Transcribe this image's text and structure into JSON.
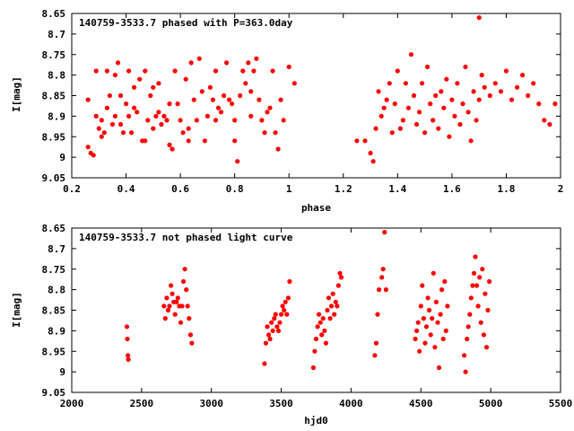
{
  "chart_data": [
    {
      "type": "scatter",
      "title": "140759-3533.7 phased with P=363.0day",
      "xlabel": "phase",
      "ylabel": "I[mag]",
      "xlim": [
        0.2,
        2.0
      ],
      "ylim": [
        9.05,
        8.65
      ],
      "y_inverted": true,
      "grid": false,
      "marker_color": "#ff0000",
      "xticks": [
        0.2,
        0.4,
        0.6,
        0.8,
        1.0,
        1.2,
        1.4,
        1.6,
        1.8,
        2.0
      ],
      "xtick_labels": [
        "0.2",
        "0.4",
        "0.6",
        "0.8",
        "1",
        "1.2",
        "1.4",
        "1.6",
        "1.8",
        "2"
      ],
      "yticks": [
        8.65,
        8.7,
        8.75,
        8.8,
        8.85,
        8.9,
        8.95,
        9.0,
        9.05
      ],
      "ytick_labels": [
        "8.65",
        "8.7",
        "8.75",
        "8.8",
        "8.85",
        "8.9",
        "8.95",
        "9",
        "9.05"
      ],
      "points": [
        [
          0.26,
          8.975
        ],
        [
          0.26,
          8.86
        ],
        [
          0.27,
          8.99
        ],
        [
          0.28,
          8.995
        ],
        [
          0.29,
          8.79
        ],
        [
          0.29,
          8.9
        ],
        [
          0.3,
          8.93
        ],
        [
          0.31,
          8.95
        ],
        [
          0.31,
          8.91
        ],
        [
          0.32,
          8.94
        ],
        [
          0.33,
          8.88
        ],
        [
          0.33,
          8.79
        ],
        [
          0.34,
          8.85
        ],
        [
          0.35,
          8.92
        ],
        [
          0.36,
          8.9
        ],
        [
          0.36,
          8.8
        ],
        [
          0.37,
          8.77
        ],
        [
          0.38,
          8.85
        ],
        [
          0.38,
          8.92
        ],
        [
          0.39,
          8.94
        ],
        [
          0.4,
          8.87
        ],
        [
          0.41,
          8.79
        ],
        [
          0.41,
          8.9
        ],
        [
          0.42,
          8.94
        ],
        [
          0.43,
          8.88
        ],
        [
          0.43,
          8.83
        ],
        [
          0.44,
          8.89
        ],
        [
          0.45,
          8.81
        ],
        [
          0.46,
          8.96
        ],
        [
          0.47,
          8.79
        ],
        [
          0.47,
          8.96
        ],
        [
          0.48,
          8.91
        ],
        [
          0.49,
          8.85
        ],
        [
          0.5,
          8.83
        ],
        [
          0.5,
          8.93
        ],
        [
          0.51,
          8.9
        ],
        [
          0.52,
          8.89
        ],
        [
          0.52,
          8.82
        ],
        [
          0.53,
          8.92
        ],
        [
          0.54,
          8.9
        ],
        [
          0.55,
          8.91
        ],
        [
          0.56,
          8.87
        ],
        [
          0.56,
          8.97
        ],
        [
          0.57,
          8.98
        ],
        [
          0.58,
          8.79
        ],
        [
          0.59,
          8.87
        ],
        [
          0.6,
          8.91
        ],
        [
          0.61,
          8.94
        ],
        [
          0.62,
          8.81
        ],
        [
          0.63,
          8.93
        ],
        [
          0.63,
          8.96
        ],
        [
          0.64,
          8.77
        ],
        [
          0.65,
          8.86
        ],
        [
          0.66,
          8.91
        ],
        [
          0.67,
          8.76
        ],
        [
          0.68,
          8.84
        ],
        [
          0.69,
          8.96
        ],
        [
          0.7,
          8.9
        ],
        [
          0.71,
          8.83
        ],
        [
          0.72,
          8.86
        ],
        [
          0.73,
          8.91
        ],
        [
          0.73,
          8.79
        ],
        [
          0.74,
          8.88
        ],
        [
          0.75,
          8.89
        ],
        [
          0.76,
          8.85
        ],
        [
          0.77,
          8.77
        ],
        [
          0.78,
          8.86
        ],
        [
          0.79,
          8.87
        ],
        [
          0.8,
          8.91
        ],
        [
          0.8,
          8.96
        ],
        [
          0.81,
          9.01
        ],
        [
          0.82,
          8.85
        ],
        [
          0.83,
          8.79
        ],
        [
          0.84,
          8.82
        ],
        [
          0.85,
          8.77
        ],
        [
          0.86,
          8.84
        ],
        [
          0.86,
          8.9
        ],
        [
          0.87,
          8.79
        ],
        [
          0.88,
          8.76
        ],
        [
          0.89,
          8.86
        ],
        [
          0.9,
          8.91
        ],
        [
          0.91,
          8.94
        ],
        [
          0.92,
          8.89
        ],
        [
          0.93,
          8.88
        ],
        [
          0.94,
          8.79
        ],
        [
          0.95,
          8.94
        ],
        [
          0.96,
          8.98
        ],
        [
          0.97,
          8.86
        ],
        [
          0.98,
          8.91
        ],
        [
          1.0,
          8.78
        ],
        [
          1.02,
          8.82
        ],
        [
          1.25,
          8.96
        ],
        [
          1.28,
          8.96
        ],
        [
          1.3,
          8.99
        ],
        [
          1.31,
          9.01
        ],
        [
          1.32,
          8.93
        ],
        [
          1.33,
          8.84
        ],
        [
          1.34,
          8.9
        ],
        [
          1.35,
          8.88
        ],
        [
          1.36,
          8.86
        ],
        [
          1.37,
          8.82
        ],
        [
          1.38,
          8.94
        ],
        [
          1.39,
          8.87
        ],
        [
          1.4,
          8.79
        ],
        [
          1.41,
          8.93
        ],
        [
          1.42,
          8.91
        ],
        [
          1.43,
          8.82
        ],
        [
          1.44,
          8.88
        ],
        [
          1.45,
          8.75
        ],
        [
          1.46,
          8.85
        ],
        [
          1.47,
          8.92
        ],
        [
          1.48,
          8.89
        ],
        [
          1.49,
          8.82
        ],
        [
          1.5,
          8.94
        ],
        [
          1.51,
          8.78
        ],
        [
          1.52,
          8.87
        ],
        [
          1.53,
          8.91
        ],
        [
          1.54,
          8.85
        ],
        [
          1.55,
          8.93
        ],
        [
          1.56,
          8.84
        ],
        [
          1.57,
          8.88
        ],
        [
          1.58,
          8.81
        ],
        [
          1.59,
          8.95
        ],
        [
          1.6,
          8.86
        ],
        [
          1.61,
          8.9
        ],
        [
          1.62,
          8.82
        ],
        [
          1.63,
          8.92
        ],
        [
          1.64,
          8.87
        ],
        [
          1.65,
          8.78
        ],
        [
          1.66,
          8.89
        ],
        [
          1.67,
          8.96
        ],
        [
          1.68,
          8.84
        ],
        [
          1.69,
          8.91
        ],
        [
          1.7,
          8.66
        ],
        [
          1.7,
          8.86
        ],
        [
          1.71,
          8.8
        ],
        [
          1.72,
          8.83
        ],
        [
          1.74,
          8.85
        ],
        [
          1.76,
          8.82
        ],
        [
          1.78,
          8.84
        ],
        [
          1.8,
          8.79
        ],
        [
          1.82,
          8.86
        ],
        [
          1.84,
          8.83
        ],
        [
          1.86,
          8.8
        ],
        [
          1.88,
          8.85
        ],
        [
          1.9,
          8.82
        ],
        [
          1.92,
          8.87
        ],
        [
          1.94,
          8.91
        ],
        [
          1.96,
          8.92
        ],
        [
          1.98,
          8.87
        ]
      ]
    },
    {
      "type": "scatter",
      "title": "140759-3533.7 not phased light curve",
      "xlabel": "hjd0",
      "ylabel": "I[mag]",
      "xlim": [
        2000,
        5500
      ],
      "ylim": [
        9.05,
        8.65
      ],
      "y_inverted": true,
      "grid": false,
      "marker_color": "#ff0000",
      "xticks": [
        2000,
        2500,
        3000,
        3500,
        4000,
        4500,
        5000,
        5500
      ],
      "xtick_labels": [
        "2000",
        "2500",
        "3000",
        "3500",
        "4000",
        "4500",
        "5000",
        "5500"
      ],
      "yticks": [
        8.65,
        8.7,
        8.75,
        8.8,
        8.85,
        8.9,
        8.95,
        9.0,
        9.05
      ],
      "ytick_labels": [
        "8.65",
        "8.7",
        "8.75",
        "8.8",
        "8.85",
        "8.9",
        "8.95",
        "9",
        "9.05"
      ],
      "points": [
        [
          2395,
          8.89
        ],
        [
          2398,
          8.92
        ],
        [
          2402,
          8.96
        ],
        [
          2405,
          8.97
        ],
        [
          2660,
          8.84
        ],
        [
          2670,
          8.87
        ],
        [
          2680,
          8.82
        ],
        [
          2690,
          8.85
        ],
        [
          2700,
          8.84
        ],
        [
          2710,
          8.79
        ],
        [
          2720,
          8.81
        ],
        [
          2730,
          8.83
        ],
        [
          2740,
          8.86
        ],
        [
          2750,
          8.83
        ],
        [
          2760,
          8.82
        ],
        [
          2770,
          8.84
        ],
        [
          2780,
          8.88
        ],
        [
          2790,
          8.84
        ],
        [
          2800,
          8.78
        ],
        [
          2810,
          8.75
        ],
        [
          2820,
          8.8
        ],
        [
          2830,
          8.84
        ],
        [
          2840,
          8.87
        ],
        [
          2850,
          8.91
        ],
        [
          2860,
          8.93
        ],
        [
          3380,
          8.98
        ],
        [
          3390,
          8.93
        ],
        [
          3400,
          8.89
        ],
        [
          3410,
          8.91
        ],
        [
          3420,
          8.92
        ],
        [
          3430,
          8.88
        ],
        [
          3440,
          8.9
        ],
        [
          3450,
          8.87
        ],
        [
          3460,
          8.86
        ],
        [
          3470,
          8.89
        ],
        [
          3480,
          8.9
        ],
        [
          3490,
          8.88
        ],
        [
          3500,
          8.86
        ],
        [
          3510,
          8.84
        ],
        [
          3520,
          8.85
        ],
        [
          3530,
          8.83
        ],
        [
          3540,
          8.86
        ],
        [
          3550,
          8.82
        ],
        [
          3560,
          8.78
        ],
        [
          3730,
          8.99
        ],
        [
          3740,
          8.95
        ],
        [
          3750,
          8.92
        ],
        [
          3760,
          8.89
        ],
        [
          3770,
          8.86
        ],
        [
          3780,
          8.88
        ],
        [
          3790,
          8.91
        ],
        [
          3800,
          8.87
        ],
        [
          3810,
          8.9
        ],
        [
          3820,
          8.93
        ],
        [
          3830,
          8.85
        ],
        [
          3840,
          8.82
        ],
        [
          3850,
          8.87
        ],
        [
          3860,
          8.84
        ],
        [
          3870,
          8.81
        ],
        [
          3880,
          8.86
        ],
        [
          3890,
          8.83
        ],
        [
          3900,
          8.84
        ],
        [
          3910,
          8.79
        ],
        [
          3920,
          8.76
        ],
        [
          3930,
          8.77
        ],
        [
          4170,
          8.96
        ],
        [
          4180,
          8.93
        ],
        [
          4190,
          8.86
        ],
        [
          4200,
          8.8
        ],
        [
          4220,
          8.77
        ],
        [
          4230,
          8.75
        ],
        [
          4240,
          8.66
        ],
        [
          4250,
          8.8
        ],
        [
          4460,
          8.92
        ],
        [
          4470,
          8.9
        ],
        [
          4480,
          8.88
        ],
        [
          4490,
          8.95
        ],
        [
          4500,
          8.84
        ],
        [
          4510,
          8.79
        ],
        [
          4520,
          8.87
        ],
        [
          4530,
          8.93
        ],
        [
          4540,
          8.89
        ],
        [
          4550,
          8.82
        ],
        [
          4560,
          8.85
        ],
        [
          4570,
          8.91
        ],
        [
          4580,
          8.87
        ],
        [
          4590,
          8.76
        ],
        [
          4600,
          8.94
        ],
        [
          4610,
          8.83
        ],
        [
          4620,
          8.88
        ],
        [
          4630,
          8.99
        ],
        [
          4640,
          8.86
        ],
        [
          4650,
          8.8
        ],
        [
          4660,
          8.92
        ],
        [
          4670,
          8.78
        ],
        [
          4680,
          8.9
        ],
        [
          4690,
          8.84
        ],
        [
          4810,
          8.96
        ],
        [
          4820,
          9.0
        ],
        [
          4830,
          8.92
        ],
        [
          4840,
          8.89
        ],
        [
          4850,
          8.86
        ],
        [
          4860,
          8.82
        ],
        [
          4870,
          8.79
        ],
        [
          4880,
          8.76
        ],
        [
          4890,
          8.72
        ],
        [
          4900,
          8.79
        ],
        [
          4910,
          8.84
        ],
        [
          4920,
          8.77
        ],
        [
          4930,
          8.88
        ],
        [
          4940,
          8.75
        ],
        [
          4950,
          8.91
        ],
        [
          4960,
          8.81
        ],
        [
          4970,
          8.94
        ],
        [
          4980,
          8.85
        ],
        [
          4990,
          8.78
        ]
      ]
    }
  ]
}
